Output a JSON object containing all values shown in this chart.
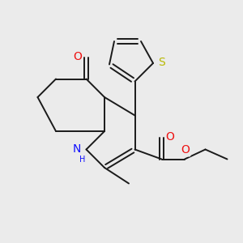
{
  "background_color": "#ebebeb",
  "bond_color": "#1a1a1a",
  "N_color": "#1010ff",
  "O_color": "#ee1111",
  "S_color": "#b8b800",
  "figsize": [
    3.0,
    3.0
  ],
  "dpi": 100,
  "xlim": [
    0,
    10
  ],
  "ylim": [
    0,
    10
  ],
  "bond_lw": 1.4,
  "font_size": 10
}
